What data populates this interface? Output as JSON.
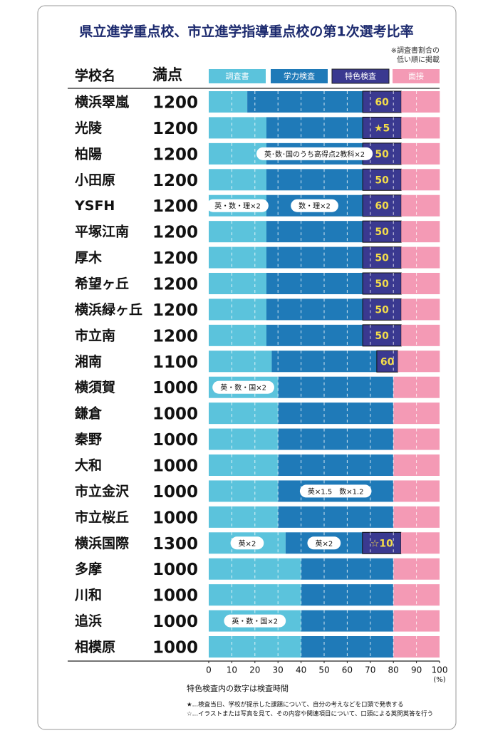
{
  "chart_data": {
    "type": "stacked-bar",
    "title": "県立進学重点校、市立進学指導重点校の第1次選考比率",
    "sort_note": [
      "※調査書割合の",
      "低い順に掲載"
    ],
    "category_header": "学校名",
    "full_marks_header": "満点",
    "categories": [
      "横浜翠嵐",
      "光陵",
      "柏陽",
      "小田原",
      "YSFH",
      "平塚江南",
      "厚木",
      "希望ヶ丘",
      "横浜緑ヶ丘",
      "市立南",
      "湘南",
      "横須賀",
      "鎌倉",
      "秦野",
      "大和",
      "市立金沢",
      "市立桜丘",
      "横浜国際",
      "多摩",
      "川和",
      "追浜",
      "相模原"
    ],
    "full_marks": [
      1200,
      1200,
      1200,
      1200,
      1200,
      1200,
      1200,
      1200,
      1200,
      1200,
      1100,
      1000,
      1000,
      1000,
      1000,
      1000,
      1000,
      1300,
      1000,
      1000,
      1000,
      1000
    ],
    "series": [
      {
        "name": "調査書",
        "color": "#5bc3dc",
        "values": [
          16.7,
          25,
          25,
          25,
          25,
          25,
          25,
          25,
          25,
          25,
          27.3,
          30,
          30,
          30,
          30,
          30,
          30,
          33.3,
          40,
          40,
          40,
          40
        ],
        "notes": [
          null,
          null,
          null,
          null,
          "英・数・理×2",
          null,
          null,
          null,
          null,
          null,
          null,
          "英・数・国×2",
          null,
          null,
          null,
          null,
          null,
          "英×2",
          null,
          null,
          "英・数・国×2",
          null
        ]
      },
      {
        "name": "学力検査",
        "color": "#1f7ab8",
        "values": [
          50,
          41.7,
          41.7,
          41.7,
          41.7,
          41.7,
          41.7,
          41.7,
          41.7,
          41.7,
          45.5,
          50,
          50,
          50,
          50,
          50,
          50,
          33.3,
          40,
          40,
          40,
          40
        ],
        "notes": [
          null,
          null,
          "英･数･国のうち高得点2教科×2",
          null,
          "数・理×2",
          null,
          null,
          null,
          null,
          null,
          null,
          null,
          null,
          null,
          null,
          "英×1.5　数×1.2",
          null,
          "英×2",
          null,
          null,
          null,
          null
        ]
      },
      {
        "name": "特色検査",
        "color": "#3a3990",
        "values": [
          16.7,
          16.7,
          16.7,
          16.7,
          16.7,
          16.7,
          16.7,
          16.7,
          16.7,
          16.7,
          9.1,
          null,
          null,
          null,
          null,
          null,
          null,
          16.7,
          null,
          null,
          null,
          null
        ],
        "notes": [
          "60",
          "★5",
          "50",
          "50",
          "60",
          "50",
          "50",
          "50",
          "50",
          "50",
          "60",
          null,
          null,
          null,
          null,
          null,
          null,
          "☆10",
          null,
          null,
          null,
          null
        ]
      },
      {
        "name": "面接",
        "color": "#f49ab5",
        "values": [
          16.7,
          16.7,
          16.7,
          16.7,
          16.7,
          16.7,
          16.7,
          16.7,
          16.7,
          16.7,
          18.2,
          20,
          20,
          20,
          20,
          20,
          20,
          16.7,
          20,
          20,
          20,
          20
        ],
        "notes": [
          null,
          null,
          null,
          null,
          null,
          null,
          null,
          null,
          null,
          null,
          null,
          null,
          null,
          null,
          null,
          null,
          null,
          null,
          null,
          null,
          null,
          null
        ]
      }
    ],
    "xlim": [
      0,
      100
    ],
    "xticks": [
      0,
      10,
      20,
      30,
      40,
      50,
      60,
      70,
      80,
      90,
      100
    ],
    "xlabel": "(%)",
    "footnotes": [
      "特色検査内の数字は検査時間",
      "★…検査当日、学校が提示した課題について、自分の考えなどを口頭で発表する",
      "☆…イラストまたは写真を見て、その内容や関連項目について、口頭による英問英答を行う"
    ]
  }
}
